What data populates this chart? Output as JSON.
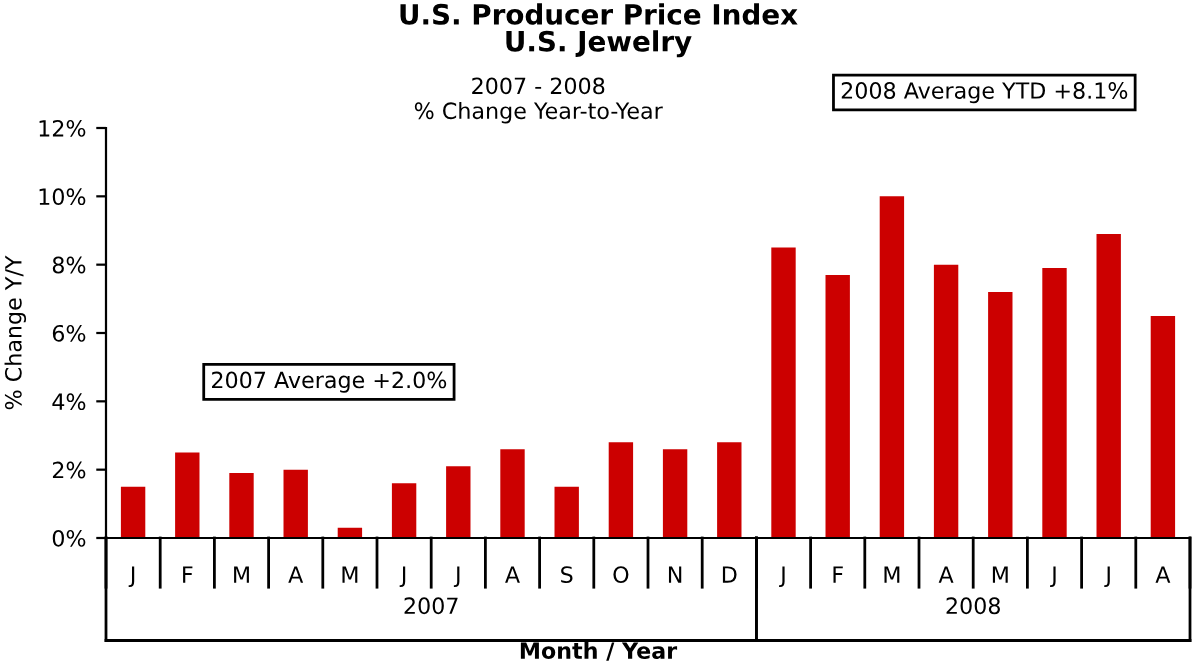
{
  "chart_data": {
    "type": "bar",
    "title": "U.S. Producer Price Index\nU.S. Jewelry",
    "subtitle": "2007 - 2008\n% Change Year-to-Year",
    "xlabel": "Month / Year",
    "ylabel": "% Change Y/Y",
    "categories": [
      "J",
      "F",
      "M",
      "A",
      "M",
      "J",
      "J",
      "A",
      "S",
      "O",
      "N",
      "D",
      "J",
      "F",
      "M",
      "A",
      "M",
      "J",
      "J",
      "A"
    ],
    "values": [
      1.5,
      2.5,
      1.9,
      2.0,
      0.3,
      1.6,
      2.1,
      2.6,
      1.5,
      2.8,
      2.6,
      2.8,
      8.5,
      7.7,
      10.0,
      8.0,
      7.2,
      7.9,
      8.9,
      6.5
    ],
    "color": "#cc0000",
    "ylim": [
      0,
      12
    ],
    "yticks": [
      {
        "value": 0,
        "label": "0%"
      },
      {
        "value": 2,
        "label": "2%"
      },
      {
        "value": 4,
        "label": "4%"
      },
      {
        "value": 6,
        "label": "6%"
      },
      {
        "value": 8,
        "label": "8%"
      },
      {
        "value": 10,
        "label": "10%"
      },
      {
        "value": 12,
        "label": "12%"
      }
    ],
    "annotations": [
      "2007 Average +2.0%",
      "2008 Average YTD +8.1%",
      "2007",
      "2008"
    ],
    "grid": false,
    "legend": false
  }
}
